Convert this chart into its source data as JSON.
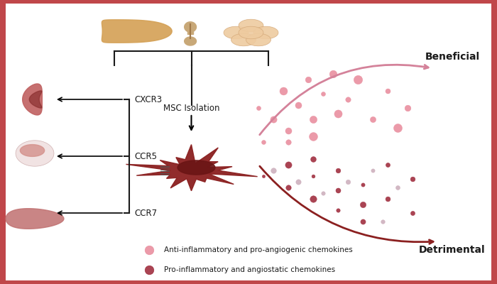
{
  "background_color": "#c0474a",
  "inner_bg_color": "#ffffff",
  "msc_isolation_text": "MSC Isolation",
  "beneficial_text": "Beneficial",
  "detrimental_text": "Detrimental",
  "cxcr3_text": "CXCR3",
  "ccr5_text": "CCR5",
  "ccr7_text": "CCR7",
  "legend1_text": "Anti-inflammatory and pro-angiogenic chemokines",
  "legend2_text": "Pro-inflammatory and angiostatic chemokines",
  "cell_color": "#8B2020",
  "cell_dark_color": "#6B1515",
  "pink_dot_color": "#E8899A",
  "dark_dot_color": "#9B2335",
  "purple_dot_color": "#C4A0B0",
  "arrow_beneficial_color": "#D4829A",
  "arrow_detrimental_color": "#8B2020",
  "bracket_color": "#1a1a1a",
  "text_color": "#1a1a1a"
}
